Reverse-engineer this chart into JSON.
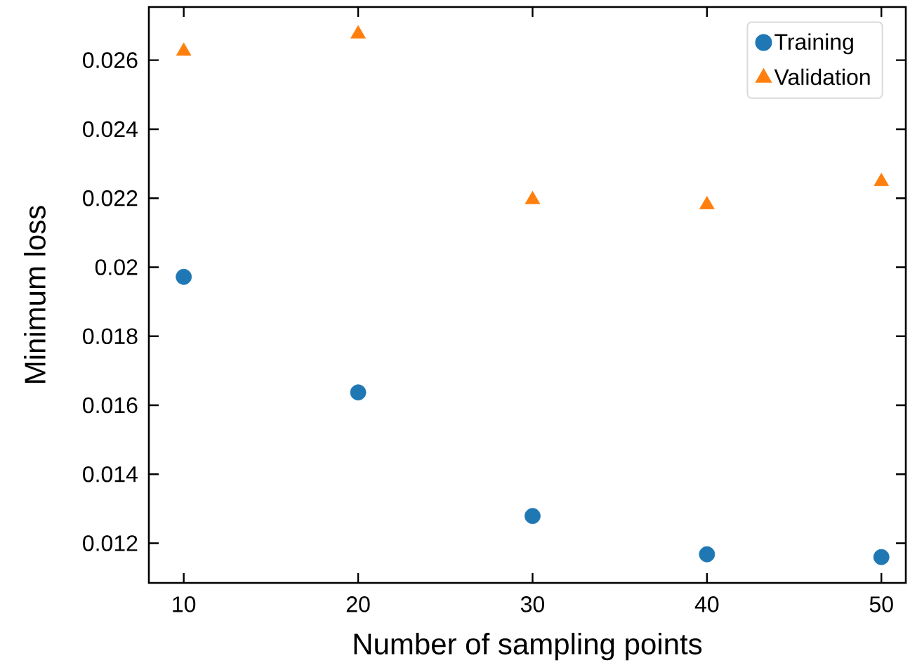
{
  "chart_data": {
    "type": "scatter",
    "xlabel": "Number of sampling points",
    "ylabel": "Minimum loss",
    "x": [
      10,
      20,
      30,
      40,
      50
    ],
    "series": [
      {
        "name": "Training",
        "color": "#1f77b4",
        "marker": "circle",
        "values": [
          0.01972,
          0.01637,
          0.01279,
          0.01168,
          0.0116
        ]
      },
      {
        "name": "Validation",
        "color": "#ff7f0e",
        "marker": "triangle",
        "values": [
          0.02626,
          0.02676,
          0.02196,
          0.02181,
          0.02248
        ]
      }
    ],
    "xlim": [
      8,
      51.4
    ],
    "ylim": [
      0.01085,
      0.02754
    ],
    "xticks": [
      10,
      20,
      30,
      40,
      50
    ],
    "yticks": [
      {
        "value": 0.012,
        "label": "0.012"
      },
      {
        "value": 0.014,
        "label": "0.014"
      },
      {
        "value": 0.016,
        "label": "0.016"
      },
      {
        "value": 0.018,
        "label": "0.018"
      },
      {
        "value": 0.02,
        "label": "0.02"
      },
      {
        "value": 0.022,
        "label": "0.022"
      },
      {
        "value": 0.024,
        "label": "0.024"
      },
      {
        "value": 0.026,
        "label": "0.026"
      }
    ],
    "grid": false,
    "legend": "top right"
  }
}
